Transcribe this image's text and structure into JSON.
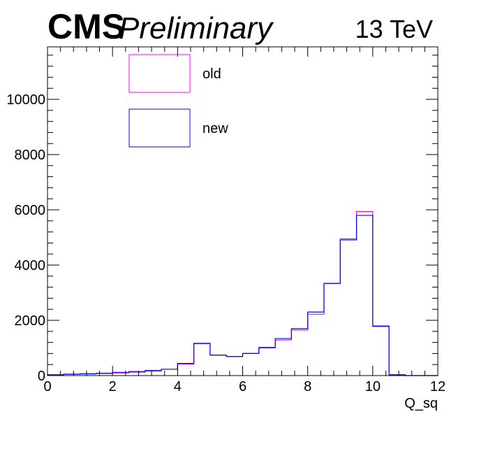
{
  "header": {
    "experiment": "CMS",
    "status": "Preliminary",
    "energy": "13 TeV"
  },
  "chart_data": {
    "type": "histogram",
    "xlabel": "Q_sq",
    "ylabel": "",
    "xlim": [
      0,
      12
    ],
    "ylim": [
      0,
      11900
    ],
    "x_ticks": [
      "0",
      "2",
      "4",
      "6",
      "8",
      "10",
      "12"
    ],
    "y_ticks": [
      "0",
      "2000",
      "4000",
      "6000",
      "8000",
      "10000"
    ],
    "bin_edges": [
      0,
      0.5,
      1,
      1.5,
      2,
      2.5,
      3,
      3.5,
      4,
      4.5,
      5,
      5.5,
      6,
      6.5,
      7,
      7.5,
      8,
      8.5,
      9,
      9.5,
      10,
      10.5,
      11,
      11.5,
      12
    ],
    "legend_position": "top-left",
    "grid": false,
    "series": [
      {
        "name": "old",
        "color": "#ff00ff",
        "values": [
          30,
          50,
          70,
          90,
          120,
          150,
          190,
          230,
          420,
          1150,
          740,
          690,
          800,
          1000,
          1290,
          1650,
          2220,
          3330,
          4950,
          5940,
          1800,
          30,
          0,
          0
        ]
      },
      {
        "name": "new",
        "color": "#0000ff",
        "values": [
          30,
          50,
          60,
          80,
          100,
          130,
          170,
          230,
          440,
          1170,
          740,
          690,
          800,
          1020,
          1340,
          1700,
          2300,
          3340,
          4910,
          5800,
          1780,
          30,
          0,
          0
        ]
      }
    ]
  }
}
